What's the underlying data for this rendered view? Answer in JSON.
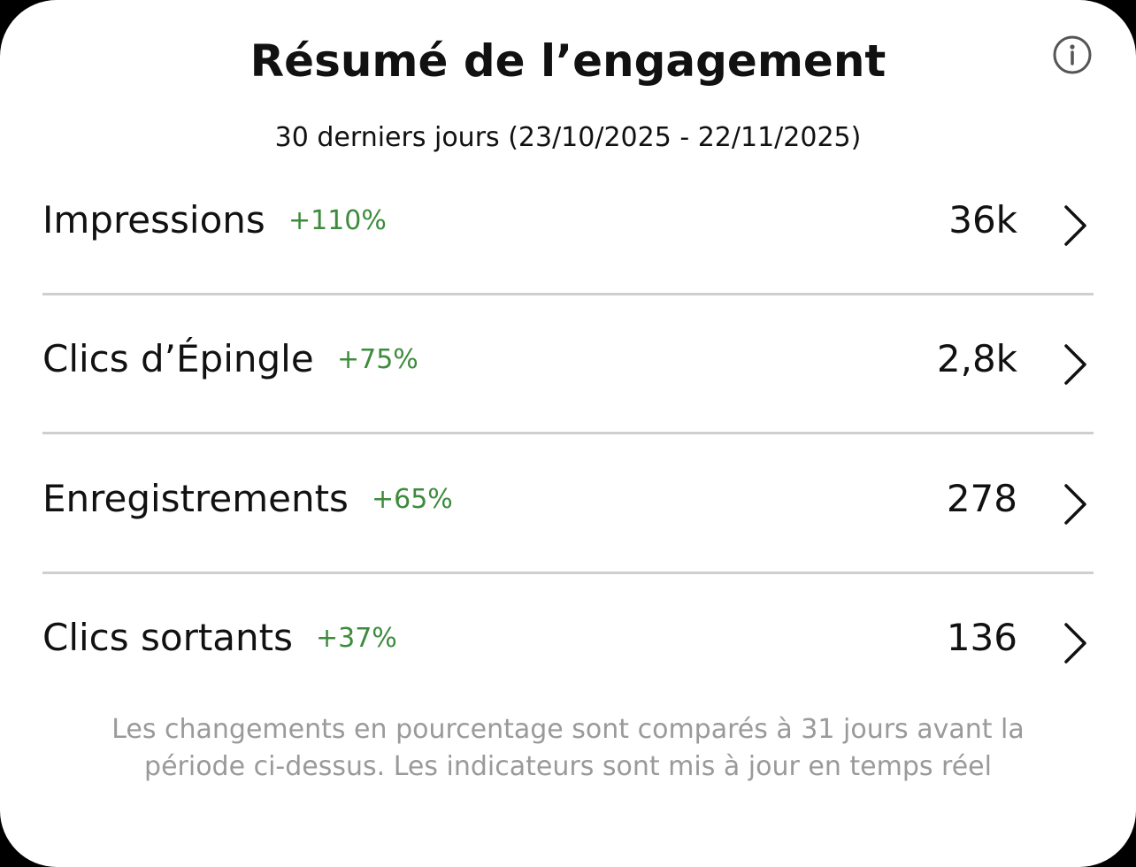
{
  "header": {
    "title": "Résumé de l’engagement",
    "subtitle": "30 derniers jours (23/10/2025 - 22/11/2025)"
  },
  "metrics": [
    {
      "label": "Impressions",
      "change": "+110%",
      "value": "36k"
    },
    {
      "label": "Clics d’Épingle",
      "change": "+75%",
      "value": "2,8k"
    },
    {
      "label": "Enregistrements",
      "change": "+65%",
      "value": "278"
    },
    {
      "label": "Clics sortants",
      "change": "+37%",
      "value": "136"
    }
  ],
  "footer": {
    "note": "Les changements en pourcentage sont comparés à 31 jours avant la période ci-dessus. Les indicateurs sont mis à jour en temps réel"
  }
}
